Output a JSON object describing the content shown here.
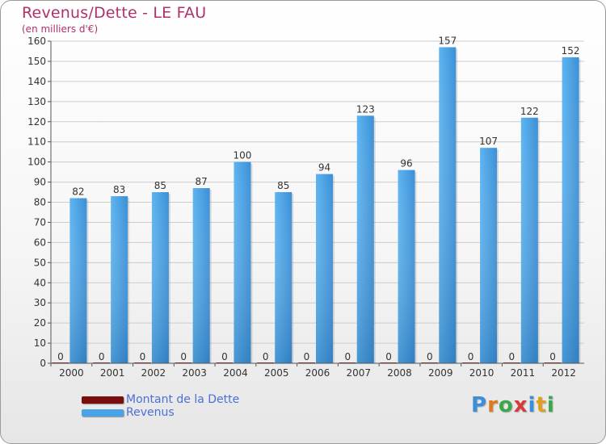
{
  "header": {
    "title": "Revenus/Dette - LE FAU",
    "subtitle": "(en milliers d'€)"
  },
  "colors": {
    "title": "#b0306a",
    "revenus": "#4aa3e6",
    "dette": "#7a0d0d",
    "legend_text": "#4a6fd8",
    "grid": "#cccccc",
    "axis_text": "#333333"
  },
  "chart_data": {
    "type": "bar",
    "title": "Revenus/Dette - LE FAU",
    "ylabel": "(en milliers d'€)",
    "xlabel": "",
    "ylim": [
      0,
      160
    ],
    "yticks": [
      0,
      10,
      20,
      30,
      40,
      50,
      60,
      70,
      80,
      90,
      100,
      110,
      120,
      130,
      140,
      150,
      160
    ],
    "grid": true,
    "categories": [
      "2000",
      "2001",
      "2002",
      "2003",
      "2004",
      "2005",
      "2006",
      "2007",
      "2008",
      "2009",
      "2010",
      "2011",
      "2012"
    ],
    "series": [
      {
        "name": "Montant de la Dette",
        "values": [
          0,
          0,
          0,
          0,
          0,
          0,
          0,
          0,
          0,
          0,
          0,
          0,
          0
        ]
      },
      {
        "name": "Revenus",
        "values": [
          82,
          83,
          85,
          87,
          100,
          85,
          94,
          123,
          96,
          157,
          107,
          122,
          152
        ]
      }
    ],
    "legend_position": "bottom-left"
  },
  "legend": {
    "items": [
      {
        "label": "Montant de la Dette",
        "color": "#7a0d0d"
      },
      {
        "label": "Revenus",
        "color": "#4aa3e6"
      }
    ]
  },
  "logo": {
    "letters": [
      "P",
      "r",
      "o",
      "x",
      "i",
      "t",
      "i"
    ],
    "colors": [
      "#3a8fd8",
      "#e07a1a",
      "#3aa84a",
      "#d83a3a",
      "#3a8fd8",
      "#e0a01a",
      "#3aa84a"
    ]
  }
}
